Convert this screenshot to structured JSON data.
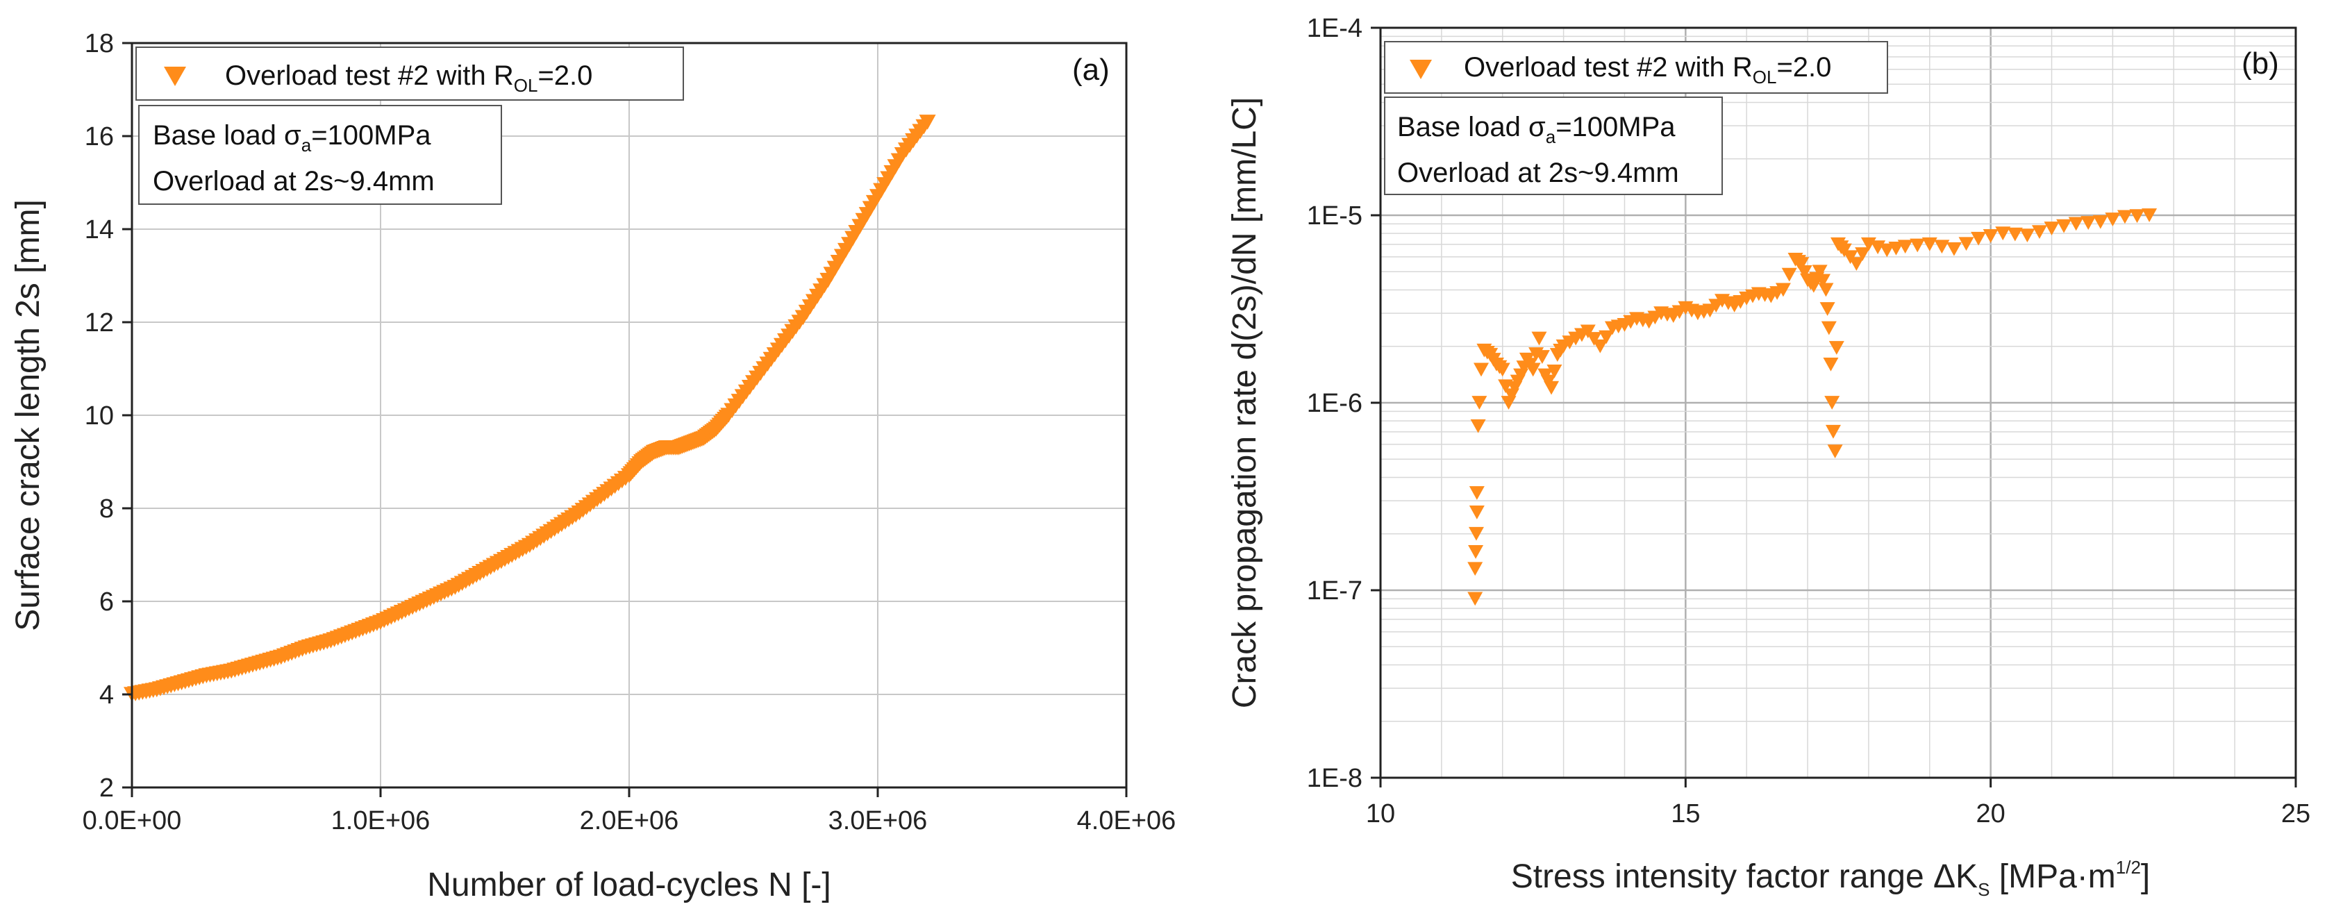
{
  "colors": {
    "marker": "#ff8c1a",
    "grid": "#c8c8c8",
    "axis": "#222222"
  },
  "chart_data": [
    {
      "type": "scatter",
      "panel_label": "(a)",
      "xlabel": "Number of load-cycles N [-]",
      "ylabel": "Surface crack length 2s [mm]",
      "xlim": [
        0,
        4000000
      ],
      "ylim": [
        2,
        18
      ],
      "xticks": [
        {
          "value": 0,
          "label": "0.0E+00"
        },
        {
          "value": 1000000,
          "label": "1.0E+06"
        },
        {
          "value": 2000000,
          "label": "2.0E+06"
        },
        {
          "value": 3000000,
          "label": "3.0E+06"
        },
        {
          "value": 4000000,
          "label": "4.0E+06"
        }
      ],
      "yticks": [
        {
          "value": 2,
          "label": "2"
        },
        {
          "value": 4,
          "label": "4"
        },
        {
          "value": 6,
          "label": "6"
        },
        {
          "value": 8,
          "label": "8"
        },
        {
          "value": 10,
          "label": "10"
        },
        {
          "value": 12,
          "label": "12"
        },
        {
          "value": 14,
          "label": "14"
        },
        {
          "value": 16,
          "label": "16"
        },
        {
          "value": 18,
          "label": "18"
        }
      ],
      "grid": true,
      "legend": {
        "placement": "top-left",
        "entry_main": "Overload test #2 with R",
        "entry_sub": "OL",
        "entry_tail": "=2.0"
      },
      "annotation": {
        "line1_main": "Base load σ",
        "line1_sub": "a",
        "line1_tail": "=100MPa",
        "line2": "Overload at 2s~9.4mm"
      },
      "series": [
        {
          "x": [
            0,
            100000,
            200000,
            300000,
            400000,
            500000,
            600000,
            700000,
            800000,
            900000,
            1000000,
            1100000,
            1200000,
            1300000,
            1400000,
            1500000,
            1600000,
            1700000,
            1800000,
            1900000,
            2000000,
            2050000,
            2100000,
            2150000,
            2200000,
            2250000,
            2300000,
            2350000,
            2400000,
            2500000,
            2600000,
            2700000,
            2800000,
            2900000,
            3000000,
            3100000,
            3200000
          ],
          "y": [
            4.0,
            4.1,
            4.25,
            4.4,
            4.5,
            4.65,
            4.8,
            5.0,
            5.15,
            5.35,
            5.55,
            5.8,
            6.05,
            6.3,
            6.6,
            6.9,
            7.2,
            7.55,
            7.9,
            8.3,
            8.7,
            9.0,
            9.2,
            9.3,
            9.3,
            9.4,
            9.5,
            9.7,
            10.0,
            10.7,
            11.4,
            12.1,
            12.9,
            13.8,
            14.7,
            15.6,
            16.3
          ]
        }
      ]
    },
    {
      "type": "scatter",
      "panel_label": "(b)",
      "xlabel_main": "Stress intensity factor range ΔK",
      "xlabel_sub": "S",
      "xlabel_tail": " [MPa·m",
      "xlabel_sup": "1/2",
      "xlabel_end": "]",
      "ylabel": "Crack propagation rate d(2s)/dN [mm/LC]",
      "xlim": [
        10,
        25
      ],
      "ylim": [
        1e-08,
        0.0001
      ],
      "yscale": "log",
      "xticks": [
        {
          "value": 10,
          "label": "10"
        },
        {
          "value": 15,
          "label": "15"
        },
        {
          "value": 20,
          "label": "20"
        },
        {
          "value": 25,
          "label": "25"
        }
      ],
      "yticks": [
        {
          "value": 1e-08,
          "label": "1E-8"
        },
        {
          "value": 1e-07,
          "label": "1E-7"
        },
        {
          "value": 1e-06,
          "label": "1E-6"
        },
        {
          "value": 1e-05,
          "label": "1E-5"
        },
        {
          "value": 0.0001,
          "label": "1E-4"
        }
      ],
      "grid": true,
      "legend": {
        "placement": "top-left",
        "entry_main": "Overload test #2 with R",
        "entry_sub": "OL",
        "entry_tail": "=2.0"
      },
      "annotation": {
        "line1_main": "Base load σ",
        "line1_sub": "a",
        "line1_tail": "=100MPa",
        "line2": "Overload at 2s~9.4mm"
      },
      "series": [
        {
          "x": [
            11.55,
            11.55,
            11.56,
            11.57,
            11.58,
            11.58,
            11.6,
            11.62,
            11.65,
            11.7,
            11.8,
            11.9,
            12.0,
            12.1,
            12.2,
            12.3,
            12.4,
            12.5,
            12.6,
            12.7,
            12.8,
            12.9,
            13.0,
            13.2,
            13.4,
            13.6,
            13.8,
            14.0,
            14.2,
            14.4,
            14.6,
            14.8,
            15.0,
            15.2,
            15.4,
            15.6,
            15.8,
            16.0,
            16.2,
            16.4,
            16.6,
            16.8,
            16.9,
            17.0,
            17.1,
            17.2,
            17.3,
            17.35,
            17.38,
            17.4,
            17.42,
            17.45,
            17.5,
            17.6,
            17.8,
            18.0,
            18.3,
            18.6,
            19.0,
            19.4,
            19.8,
            20.2,
            20.6,
            21.0,
            21.4,
            21.8,
            22.2,
            22.6
          ],
          "y": [
            9e-08,
            1.3e-07,
            1.6e-07,
            2e-07,
            2.6e-07,
            3.3e-07,
            7.5e-07,
            1e-06,
            1.5e-06,
            1.9e-06,
            1.8e-06,
            1.6e-06,
            1.5e-06,
            1e-06,
            1.2e-06,
            1.4e-06,
            1.7e-06,
            1.5e-06,
            2.2e-06,
            1.4e-06,
            1.2e-06,
            1.8e-06,
            2e-06,
            2.2e-06,
            2.4e-06,
            2e-06,
            2.5e-06,
            2.6e-06,
            2.8e-06,
            2.7e-06,
            3e-06,
            2.9e-06,
            3.2e-06,
            3e-06,
            3.1e-06,
            3.5e-06,
            3.3e-06,
            3.6e-06,
            3.8e-06,
            3.7e-06,
            4e-06,
            5.8e-06,
            5.5e-06,
            4.5e-06,
            4.2e-06,
            5e-06,
            4e-06,
            2.5e-06,
            1.6e-06,
            1e-06,
            7e-07,
            5.5e-07,
            7e-06,
            6.5e-06,
            5.5e-06,
            7e-06,
            6.5e-06,
            6.8e-06,
            7e-06,
            6.6e-06,
            7.5e-06,
            8e-06,
            7.8e-06,
            8.5e-06,
            9e-06,
            9.2e-06,
            9.8e-06,
            1e-05
          ]
        }
      ]
    }
  ]
}
